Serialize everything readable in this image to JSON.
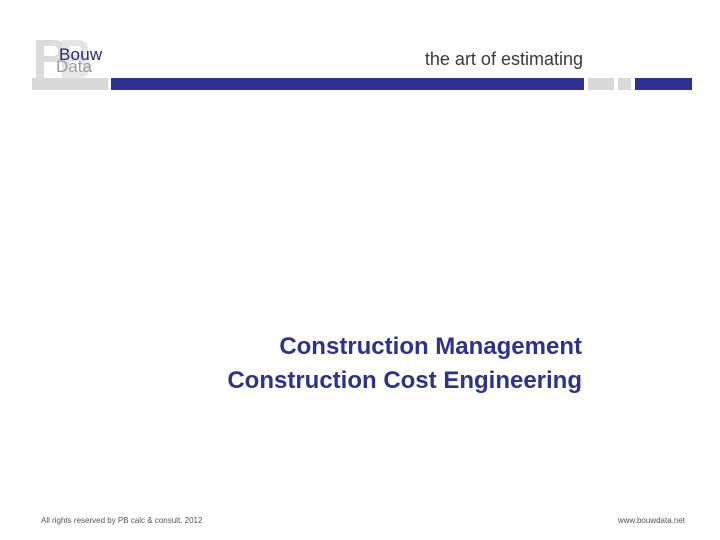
{
  "header": {
    "logo": {
      "word1": "Bouw",
      "word2": "Data",
      "icon": "pb-logo-icon"
    },
    "tagline": "the art of estimating"
  },
  "title": {
    "line1": "Construction Management",
    "line2": "Construction Cost Engineering"
  },
  "footer": {
    "copyright": "All rights reserved by PB calc & consult. 2012",
    "website": "www.bouwdata.net"
  },
  "colors": {
    "brand_blue": "#2e3192",
    "accent_grey": "#d9d9d9",
    "logo_grey": "#9b9b9b"
  }
}
